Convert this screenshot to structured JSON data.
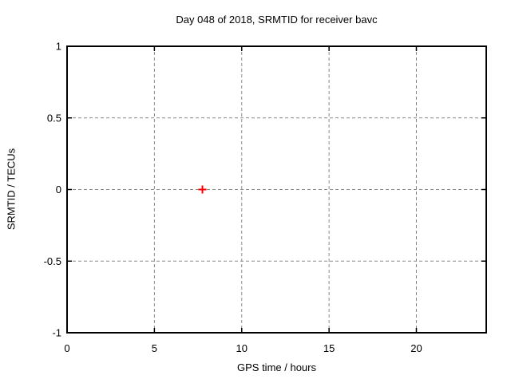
{
  "window": {
    "background": "#ffffff"
  },
  "chart_data": {
    "type": "scatter",
    "title": "Day 048 of 2018, SRMTID for receiver bavc",
    "xlabel": "GPS time / hours",
    "ylabel": "SRMTID / TECUs",
    "xlim": [
      0,
      24
    ],
    "ylim": [
      -1,
      1
    ],
    "xticks": [
      0,
      5,
      10,
      15,
      20
    ],
    "xtick_labels": [
      "0",
      "5",
      "10",
      "15",
      "20"
    ],
    "yticks": [
      -1,
      -0.5,
      0,
      0.5,
      1
    ],
    "ytick_labels": [
      "-1",
      "-0.5",
      "0",
      "0.5",
      "1"
    ],
    "grid": true,
    "grid_style": "dashed",
    "legend": "none",
    "series": [
      {
        "name": "SRMTID",
        "marker": "plus",
        "color": "#ff0000",
        "points": [
          {
            "x": 7.75,
            "y": 0
          }
        ]
      }
    ],
    "colors": {
      "axis": "#000000",
      "grid": "#8c8c8c",
      "text": "#000000",
      "background": "#ffffff"
    }
  }
}
